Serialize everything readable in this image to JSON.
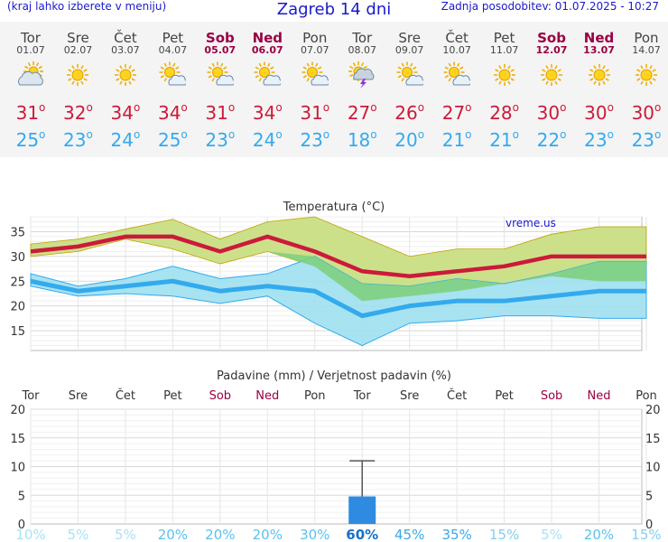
{
  "header": {
    "left": "(kraj lahko izberete v meniju)",
    "title": "Zagreb 14 dni",
    "right": "Zadnja posodobitev: 01.07.2025 - 10:27"
  },
  "days": [
    {
      "name": "Tor",
      "date": "01.07",
      "weekend": false,
      "icon": "cloudy-sun-icon",
      "max": "31",
      "min": "25"
    },
    {
      "name": "Sre",
      "date": "02.07",
      "weekend": false,
      "icon": "sun-icon",
      "max": "32",
      "min": "23"
    },
    {
      "name": "Čet",
      "date": "03.07",
      "weekend": false,
      "icon": "sun-icon",
      "max": "34",
      "min": "24"
    },
    {
      "name": "Pet",
      "date": "04.07",
      "weekend": false,
      "icon": "partly-cloudy-icon",
      "max": "34",
      "min": "25"
    },
    {
      "name": "Sob",
      "date": "05.07",
      "weekend": true,
      "icon": "partly-cloudy-icon",
      "max": "31",
      "min": "23"
    },
    {
      "name": "Ned",
      "date": "06.07",
      "weekend": true,
      "icon": "partly-cloudy-icon",
      "max": "34",
      "min": "24"
    },
    {
      "name": "Pon",
      "date": "07.07",
      "weekend": false,
      "icon": "partly-cloudy-icon",
      "max": "31",
      "min": "23"
    },
    {
      "name": "Tor",
      "date": "08.07",
      "weekend": false,
      "icon": "thunderstorm-icon",
      "max": "27",
      "min": "18"
    },
    {
      "name": "Sre",
      "date": "09.07",
      "weekend": false,
      "icon": "partly-cloudy-icon",
      "max": "26",
      "min": "20"
    },
    {
      "name": "Čet",
      "date": "10.07",
      "weekend": false,
      "icon": "partly-cloudy-icon",
      "max": "27",
      "min": "21"
    },
    {
      "name": "Pet",
      "date": "11.07",
      "weekend": false,
      "icon": "sun-icon",
      "max": "28",
      "min": "21"
    },
    {
      "name": "Sob",
      "date": "12.07",
      "weekend": true,
      "icon": "sun-icon",
      "max": "30",
      "min": "22"
    },
    {
      "name": "Ned",
      "date": "13.07",
      "weekend": true,
      "icon": "sun-icon",
      "max": "30",
      "min": "23"
    },
    {
      "name": "Pon",
      "date": "14.07",
      "weekend": false,
      "icon": "sun-icon",
      "max": "30",
      "min": "23"
    }
  ],
  "colors": {
    "max": "#cc1a3a",
    "min": "#33aaee",
    "weekend": "#990044",
    "title": "#1a1acc",
    "max_band": "#cce08a",
    "min_band": "#9ee0ef",
    "overlap_band": "#7ecf7a",
    "bar": "#2e8be0"
  },
  "chart_data": [
    {
      "type": "line",
      "title": "Temperatura (°C)",
      "watermark": "vreme.us",
      "categories": [
        "Tor",
        "Sre",
        "Čet",
        "Pet",
        "Sob",
        "Ned",
        "Pon",
        "Tor",
        "Sre",
        "Čet",
        "Pet",
        "Sob",
        "Ned",
        "Pon"
      ],
      "yticks": [
        15,
        20,
        25,
        30,
        35
      ],
      "ylim": [
        11,
        38
      ],
      "grid": true,
      "series": [
        {
          "values": [
            31,
            32,
            34,
            34,
            31,
            34,
            31,
            27,
            26,
            27,
            28,
            30,
            30,
            30
          ]
        },
        {
          "values": [
            25,
            23,
            24,
            25,
            23,
            24,
            23,
            18,
            20,
            21,
            21,
            22,
            23,
            23
          ]
        },
        {
          "values": [
            32.5,
            33.5,
            35.5,
            37.5,
            33.5,
            37,
            38,
            34,
            30,
            31.5,
            31.5,
            34.5,
            36,
            36
          ]
        },
        {
          "values": [
            30,
            31,
            33.5,
            31.5,
            28.5,
            31,
            28,
            21,
            22,
            23,
            24.5,
            26,
            25,
            25
          ]
        },
        {
          "values": [
            26.5,
            24,
            25.5,
            28,
            25.5,
            26.5,
            30,
            24.5,
            24,
            25.5,
            24.5,
            26.5,
            29,
            29
          ]
        },
        {
          "values": [
            24,
            22,
            22.5,
            22,
            20.5,
            22,
            16.5,
            12,
            16.5,
            17,
            18,
            18,
            17.5,
            17.5
          ]
        }
      ]
    },
    {
      "type": "bar",
      "title": "Padavine (mm) / Verjetnost padavin (%)",
      "categories": [
        "Tor",
        "Sre",
        "Čet",
        "Pet",
        "Sob",
        "Ned",
        "Pon",
        "Tor",
        "Sre",
        "Čet",
        "Pet",
        "Sob",
        "Ned",
        "Pon"
      ],
      "values": [
        0,
        0,
        0,
        0,
        0,
        0,
        0,
        4.8,
        0,
        0,
        0,
        0,
        0,
        0
      ],
      "error_high": [
        0,
        0,
        0,
        0,
        0,
        0,
        0,
        11,
        0,
        0,
        0,
        0,
        0,
        0
      ],
      "probability": [
        "10%",
        "5%",
        "5%",
        "20%",
        "20%",
        "20%",
        "30%",
        "60%",
        "45%",
        "35%",
        "15%",
        "5%",
        "20%",
        "15%"
      ],
      "yticks": [
        0,
        5,
        10,
        15,
        20
      ],
      "ylim": [
        0,
        20
      ],
      "grid": true
    }
  ]
}
